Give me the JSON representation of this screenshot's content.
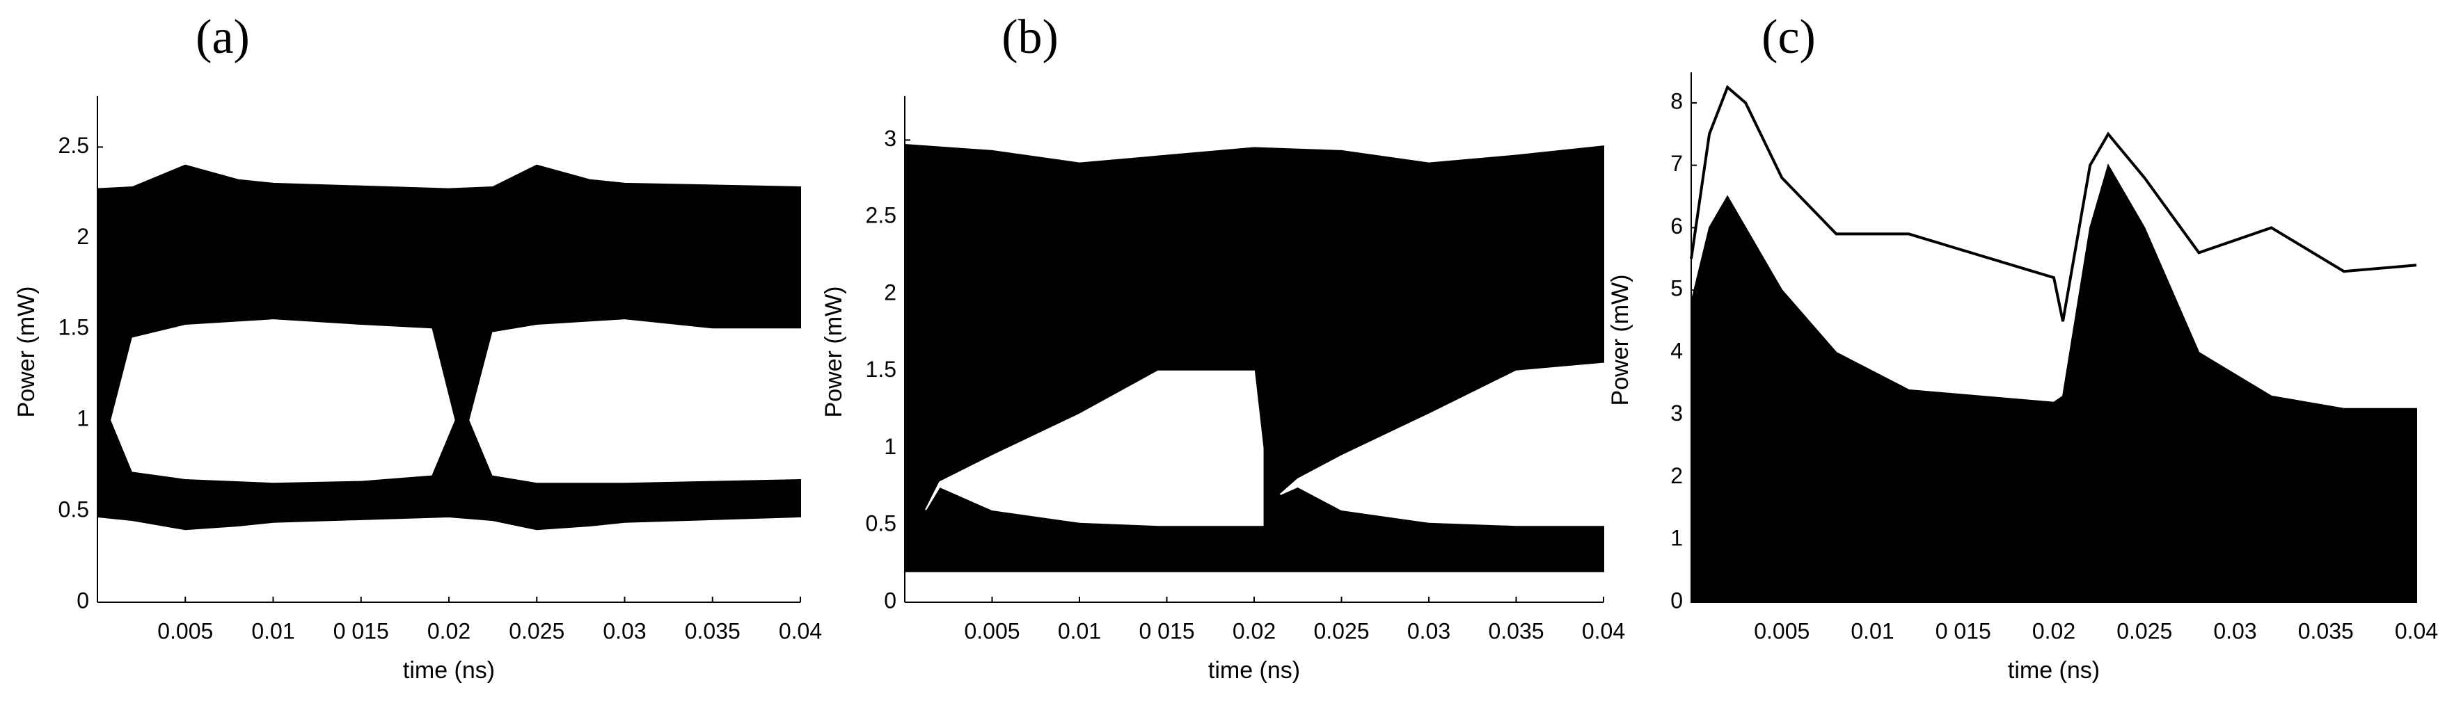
{
  "chart_data": [
    {
      "type": "area",
      "title": "(a)",
      "xlabel": "time (ns)",
      "ylabel": "Power (mW)",
      "xlim": [
        0,
        0.04
      ],
      "ylim": [
        0,
        2.75
      ],
      "xticks": [
        0.005,
        0.01,
        {
          "value": 0.015,
          "label": "0 015"
        },
        0.02,
        0.025,
        0.03,
        0.035,
        0.04
      ],
      "yticks": [
        0,
        0.5,
        1,
        1.5,
        2,
        2.5
      ],
      "series": [
        {
          "color": "#000000",
          "x": [
            0,
            0.002,
            0.005,
            0.008,
            0.01,
            0.02,
            0.0225,
            0.025,
            0.028,
            0.03,
            0.04
          ],
          "values": [
            2.27,
            2.28,
            2.4,
            2.32,
            2.3,
            2.27,
            2.28,
            2.4,
            2.32,
            2.3,
            2.28
          ],
          "lower": [
            0.47,
            0.45,
            0.4,
            0.42,
            0.44,
            0.47,
            0.45,
            0.4,
            0.42,
            0.44,
            0.47
          ]
        },
        {
          "color": "#ffffff",
          "x": [
            0.0008,
            0.002,
            0.005,
            0.01,
            0.015,
            0.019,
            0.0203
          ],
          "values": [
            1.0,
            1.45,
            1.52,
            1.55,
            1.52,
            1.5,
            1.0
          ],
          "lower": [
            1.0,
            0.72,
            0.68,
            0.66,
            0.67,
            0.7,
            1.0
          ]
        },
        {
          "color": "#ffffff",
          "x": [
            0.0212,
            0.0225,
            0.025,
            0.03,
            0.035,
            0.04
          ],
          "values": [
            1.0,
            1.48,
            1.52,
            1.55,
            1.5,
            1.5
          ],
          "lower": [
            1.0,
            0.7,
            0.66,
            0.66,
            0.67,
            0.68
          ]
        }
      ]
    },
    {
      "type": "area",
      "title": "(b)",
      "xlabel": "time (ns)",
      "ylabel": "Power (mW)",
      "xlim": [
        0,
        0.04
      ],
      "ylim": [
        0,
        3.25
      ],
      "xticks": [
        0.005,
        0.01,
        {
          "value": 0.015,
          "label": "0 015"
        },
        0.02,
        0.025,
        0.03,
        0.035,
        0.04
      ],
      "yticks": [
        0,
        0.5,
        1,
        1.5,
        2,
        2.5,
        3
      ],
      "series": [
        {
          "color": "#000000",
          "x": [
            0,
            0.005,
            0.01,
            0.015,
            0.02,
            0.025,
            0.03,
            0.035,
            0.04
          ],
          "values": [
            2.97,
            2.93,
            2.85,
            2.9,
            2.95,
            2.93,
            2.85,
            2.9,
            2.96
          ],
          "lower": [
            0.2,
            0.2,
            0.2,
            0.2,
            0.2,
            0.2,
            0.2,
            0.2,
            0.2
          ]
        },
        {
          "color": "#ffffff",
          "x": [
            0.0012,
            0.002,
            0.005,
            0.01,
            0.0145,
            0.02,
            0.0205
          ],
          "values": [
            0.6,
            0.78,
            0.95,
            1.22,
            1.5,
            1.5,
            1.0
          ],
          "lower": [
            0.6,
            0.75,
            0.6,
            0.52,
            0.5,
            0.5,
            0.5
          ]
        },
        {
          "color": "#ffffff",
          "x": [
            0.0215,
            0.0225,
            0.025,
            0.03,
            0.035,
            0.04
          ],
          "values": [
            0.7,
            0.8,
            0.95,
            1.22,
            1.5,
            1.55
          ],
          "lower": [
            0.7,
            0.75,
            0.6,
            0.52,
            0.5,
            0.5
          ]
        }
      ]
    },
    {
      "type": "area",
      "title": "(c)",
      "xlabel": "time (ns)",
      "ylabel": "Power (mW)",
      "xlim": [
        0,
        0.04
      ],
      "ylim": [
        0,
        8.4
      ],
      "xticks": [
        0.005,
        0.01,
        {
          "value": 0.015,
          "label": "0 015"
        },
        0.02,
        0.025,
        0.03,
        0.035,
        0.04
      ],
      "yticks": [
        0,
        1,
        2,
        3,
        4,
        5,
        6,
        7,
        8
      ],
      "series": [
        {
          "color": "#000000",
          "x": [
            0,
            0.001,
            0.002,
            0.003,
            0.005,
            0.008,
            0.012,
            0.02,
            0.0205,
            0.022,
            0.023,
            0.025,
            0.028,
            0.032,
            0.036,
            0.04
          ],
          "values": [
            4.8,
            6.0,
            6.5,
            6.0,
            5.0,
            4.0,
            3.4,
            3.2,
            3.3,
            6.0,
            7.0,
            6.0,
            4.0,
            3.3,
            3.1,
            3.1
          ],
          "lower": [
            0,
            0,
            0,
            0,
            0,
            0,
            0,
            0,
            0,
            0,
            0,
            0,
            0,
            0,
            0,
            0
          ]
        },
        {
          "color": "#000000",
          "x": [
            0,
            0.001,
            0.002,
            0.003,
            0.005,
            0.008,
            0.012,
            0.02,
            0.0205,
            0.022,
            0.023,
            0.025,
            0.028,
            0.032,
            0.036,
            0.04
          ],
          "values": [
            5.5,
            7.5,
            8.25,
            8.0,
            6.8,
            5.9,
            5.9,
            5.2,
            4.5,
            7.0,
            7.5,
            6.8,
            5.6,
            6.0,
            5.3,
            5.4
          ]
        }
      ]
    }
  ]
}
